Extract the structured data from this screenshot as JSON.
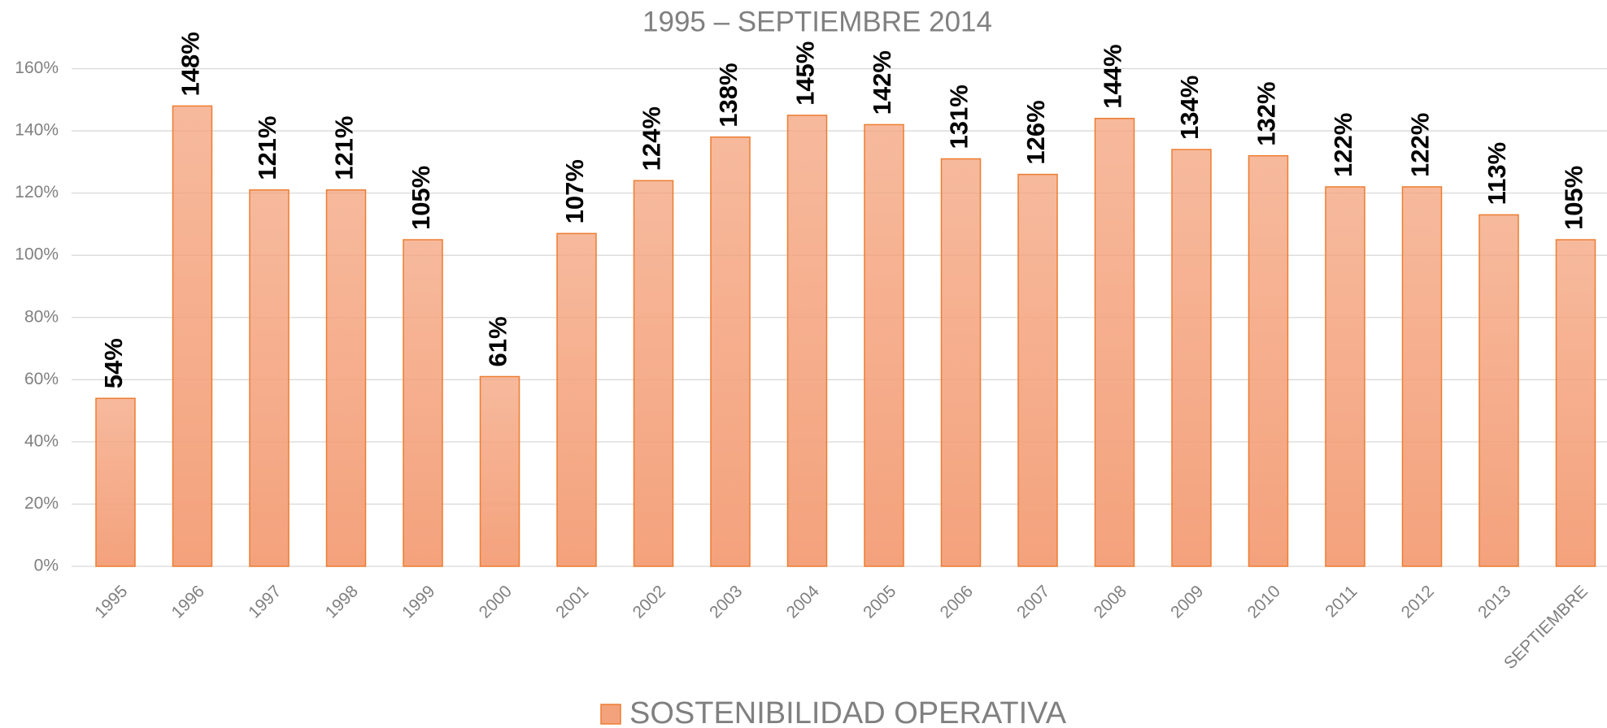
{
  "chart_data": {
    "type": "bar",
    "title": "1995 – SEPTIEMBRE 2014",
    "categories": [
      "1995",
      "1996",
      "1997",
      "1998",
      "1999",
      "2000",
      "2001",
      "2002",
      "2003",
      "2004",
      "2005",
      "2006",
      "2007",
      "2008",
      "2009",
      "2010",
      "2011",
      "2012",
      "2013",
      "SEPTIEMBRE"
    ],
    "series": [
      {
        "name": "SOSTENIBILIDAD OPERATIVA",
        "color": "#f4a27c",
        "edge": "#ed7d31",
        "values": [
          54,
          148,
          121,
          121,
          105,
          61,
          107,
          124,
          138,
          145,
          142,
          131,
          126,
          144,
          134,
          132,
          122,
          122,
          113,
          105
        ],
        "value_labels": [
          "54%",
          "148%",
          "121%",
          "121%",
          "105%",
          "61%",
          "107%",
          "124%",
          "138%",
          "145%",
          "142%",
          "131%",
          "126%",
          "144%",
          "134%",
          "132%",
          "122%",
          "122%",
          "113%",
          "105%"
        ]
      }
    ],
    "ylim": [
      0,
      160
    ],
    "yticks": [
      {
        "value": 0,
        "label": "0%"
      },
      {
        "value": 20,
        "label": "20%"
      },
      {
        "value": 40,
        "label": "40%"
      },
      {
        "value": 60,
        "label": "60%"
      },
      {
        "value": 80,
        "label": "80%"
      },
      {
        "value": 100,
        "label": "100%"
      },
      {
        "value": 120,
        "label": "120%"
      },
      {
        "value": 140,
        "label": "140%"
      },
      {
        "value": 160,
        "label": "160%"
      }
    ],
    "grid": true,
    "legend": "bottom"
  }
}
